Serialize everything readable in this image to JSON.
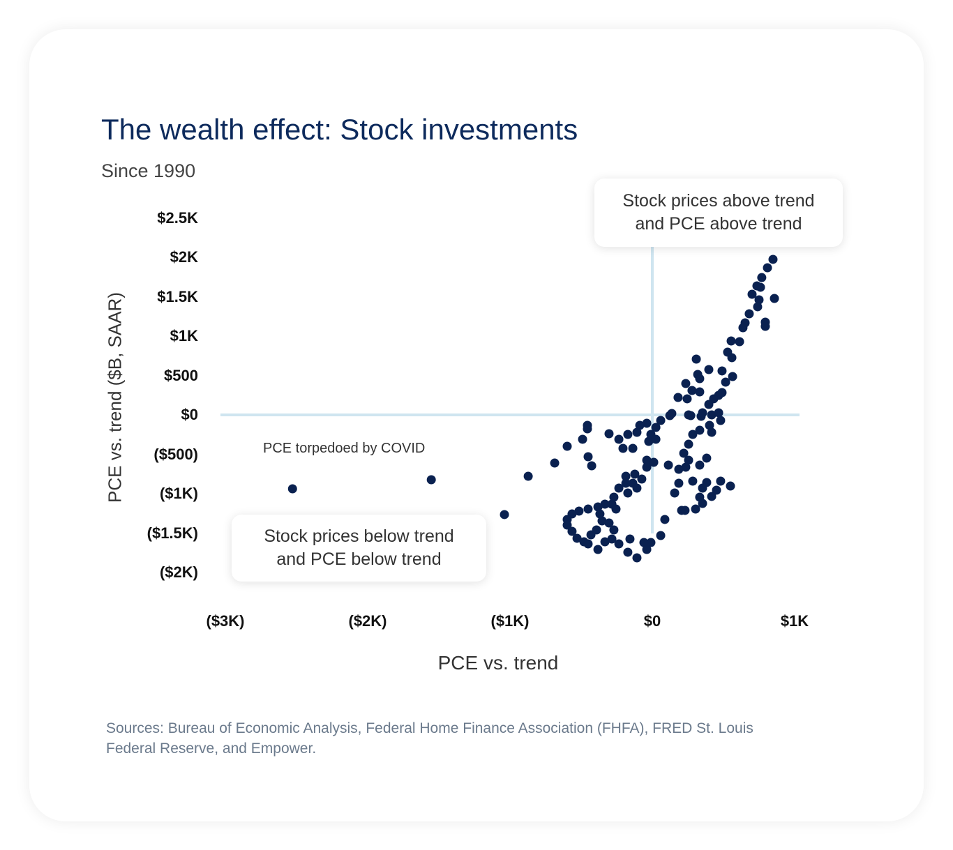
{
  "chart_data": {
    "type": "scatter",
    "title": "The wealth effect: Stock investments",
    "subtitle": "Since 1990",
    "xlabel": "PCE vs. trend",
    "ylabel": "PCE vs. trend ($B, SAAR)",
    "xlim": [
      -3000,
      1000
    ],
    "ylim": [
      -2000,
      2500
    ],
    "x_ticks": [
      {
        "value": -3000,
        "label": "($3K)"
      },
      {
        "value": -2000,
        "label": "($2K)"
      },
      {
        "value": -1000,
        "label": "($1K)"
      },
      {
        "value": 0,
        "label": "$0"
      },
      {
        "value": 1000,
        "label": "$1K"
      }
    ],
    "y_ticks": [
      {
        "value": 2500,
        "label": "$2.5K"
      },
      {
        "value": 2000,
        "label": "$2K"
      },
      {
        "value": 1500,
        "label": "$1.5K"
      },
      {
        "value": 1000,
        "label": "$1K"
      },
      {
        "value": 500,
        "label": "$500"
      },
      {
        "value": 0,
        "label": "$0"
      },
      {
        "value": -500,
        "label": "($500)"
      },
      {
        "value": -1000,
        "label": "($1K)"
      },
      {
        "value": -1500,
        "label": "($1.5K)"
      },
      {
        "value": -2000,
        "label": "($2K)"
      }
    ],
    "grid": false,
    "reference_lines": {
      "x": 0,
      "y": 0,
      "color": "#cfe5f0"
    },
    "point_color": "#0a2150",
    "annotations": {
      "top_right": [
        "Stock prices above trend",
        "and PCE above trend"
      ],
      "bottom_left": [
        "Stock prices below trend",
        "and PCE below trend"
      ],
      "covid": "PCE torpedoed by COVID"
    },
    "points": [
      [
        848,
        1974
      ],
      [
        809,
        1867
      ],
      [
        769,
        1743
      ],
      [
        735,
        1637
      ],
      [
        701,
        1531
      ],
      [
        760,
        1620
      ],
      [
        750,
        1460
      ],
      [
        740,
        1372
      ],
      [
        858,
        1478
      ],
      [
        681,
        1283
      ],
      [
        652,
        1168
      ],
      [
        794,
        1177
      ],
      [
        794,
        1124
      ],
      [
        637,
        1106
      ],
      [
        613,
        929
      ],
      [
        554,
        938
      ],
      [
        529,
        796
      ],
      [
        559,
        726
      ],
      [
        564,
        487
      ],
      [
        490,
        558
      ],
      [
        515,
        416
      ],
      [
        397,
        575
      ],
      [
        309,
        708
      ],
      [
        319,
        513
      ],
      [
        333,
        460
      ],
      [
        235,
        398
      ],
      [
        333,
        292
      ],
      [
        245,
        204
      ],
      [
        279,
        310
      ],
      [
        490,
        283
      ],
      [
        466,
        248
      ],
      [
        431,
        204
      ],
      [
        181,
        221
      ],
      [
        397,
        133
      ],
      [
        417,
        0
      ],
      [
        343,
        -18
      ],
      [
        270,
        -9
      ],
      [
        123,
        -9
      ],
      [
        137,
        18
      ],
      [
        255,
        0
      ],
      [
        353,
        27
      ],
      [
        466,
        27
      ],
      [
        480,
        -71
      ],
      [
        402,
        -133
      ],
      [
        333,
        -195
      ],
      [
        417,
        -221
      ],
      [
        284,
        -248
      ],
      [
        255,
        -372
      ],
      [
        221,
        -487
      ],
      [
        255,
        -575
      ],
      [
        235,
        -664
      ],
      [
        382,
        -549
      ],
      [
        333,
        -637
      ],
      [
        186,
        -690
      ],
      [
        113,
        -637
      ],
      [
        186,
        -867
      ],
      [
        284,
        -841
      ],
      [
        382,
        -858
      ],
      [
        480,
        -841
      ],
      [
        549,
        -903
      ],
      [
        157,
        -991
      ],
      [
        353,
        -929
      ],
      [
        451,
        -956
      ],
      [
        333,
        -1044
      ],
      [
        417,
        -1035
      ],
      [
        353,
        -1124
      ],
      [
        304,
        -1195
      ],
      [
        206,
        -1212
      ],
      [
        230,
        -1212
      ],
      [
        88,
        -1327
      ],
      [
        59,
        -1531
      ],
      [
        -10,
        -1620
      ],
      [
        -59,
        -1620
      ],
      [
        -39,
        -1708
      ],
      [
        -108,
        -1814
      ],
      [
        -157,
        -1575
      ],
      [
        -172,
        -1743
      ],
      [
        25,
        -159
      ],
      [
        59,
        -71
      ],
      [
        -39,
        -106
      ],
      [
        -88,
        -133
      ],
      [
        -10,
        -248
      ],
      [
        -108,
        -221
      ],
      [
        -172,
        -248
      ],
      [
        -235,
        -310
      ],
      [
        -206,
        -425
      ],
      [
        -137,
        -425
      ],
      [
        -25,
        -336
      ],
      [
        25,
        -310
      ],
      [
        -304,
        -239
      ],
      [
        -39,
        -575
      ],
      [
        10,
        -602
      ],
      [
        -39,
        -664
      ],
      [
        -456,
        -133
      ],
      [
        -456,
        -177
      ],
      [
        -490,
        -310
      ],
      [
        -598,
        -398
      ],
      [
        -451,
        -531
      ],
      [
        -426,
        -646
      ],
      [
        -186,
        -779
      ],
      [
        -123,
        -752
      ],
      [
        -74,
        -814
      ],
      [
        -137,
        -867
      ],
      [
        -186,
        -867
      ],
      [
        -108,
        -929
      ],
      [
        -172,
        -991
      ],
      [
        -235,
        -929
      ],
      [
        -270,
        -1044
      ],
      [
        -284,
        -1133
      ],
      [
        -255,
        -1195
      ],
      [
        -333,
        -1133
      ],
      [
        -382,
        -1168
      ],
      [
        -451,
        -1195
      ],
      [
        -515,
        -1221
      ],
      [
        -564,
        -1257
      ],
      [
        -598,
        -1327
      ],
      [
        -598,
        -1398
      ],
      [
        -564,
        -1478
      ],
      [
        -529,
        -1566
      ],
      [
        -480,
        -1611
      ],
      [
        -431,
        -1522
      ],
      [
        -392,
        -1460
      ],
      [
        -353,
        -1345
      ],
      [
        -368,
        -1257
      ],
      [
        -304,
        -1372
      ],
      [
        -270,
        -1460
      ],
      [
        -284,
        -1575
      ],
      [
        -235,
        -1637
      ],
      [
        -382,
        -1708
      ],
      [
        -333,
        -1611
      ],
      [
        -451,
        -1637
      ],
      [
        -2528,
        -938
      ],
      [
        -1553,
        -823
      ],
      [
        -1039,
        -1265
      ],
      [
        -872,
        -779
      ],
      [
        -686,
        -611
      ]
    ]
  },
  "sources": [
    "Sources: Bureau of Economic Analysis, Federal Home Finance Association (FHFA), FRED St. Louis",
    "Federal Reserve, and Empower."
  ]
}
